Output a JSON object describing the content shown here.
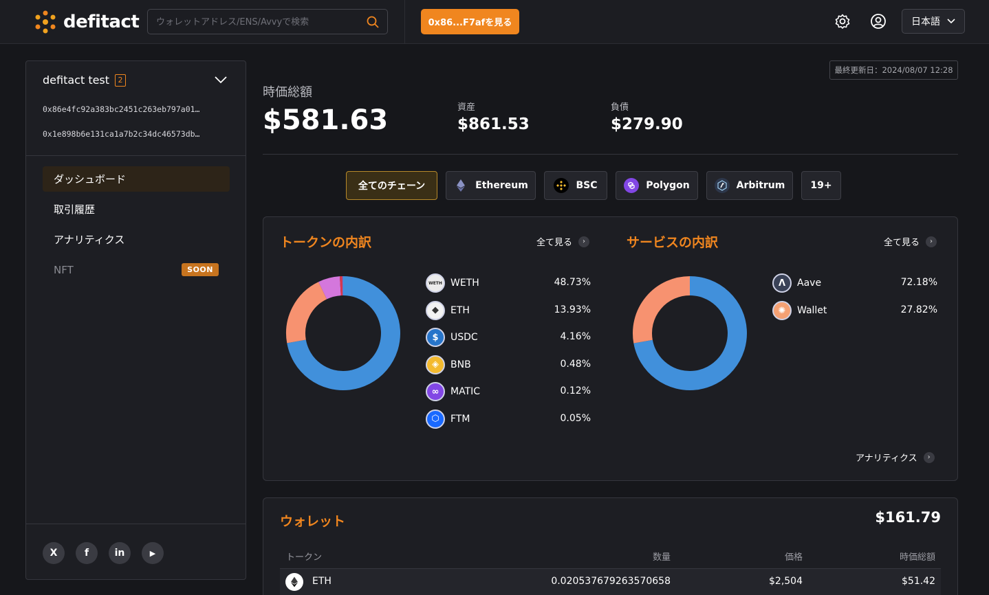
{
  "header": {
    "logo_text": "defitact",
    "search_placeholder": "ウォレットアドレス/ENS/Avvyで検索",
    "view_button": "0x86...F7afを見る",
    "language": "日本語"
  },
  "sidebar": {
    "account_name": "defitact test",
    "account_count": "2",
    "addresses": [
      "0x86e4fc92a383bc2451c263eb797a01…",
      "0x1e898b6e131ca1a7b2c34dc46573db…"
    ],
    "nav": [
      {
        "label": "ダッシュボード",
        "active": true
      },
      {
        "label": "取引履歴"
      },
      {
        "label": "アナリティクス"
      },
      {
        "label": "NFT",
        "badge": "SOON"
      }
    ],
    "social": [
      "X",
      "f",
      "in",
      "▶"
    ]
  },
  "summary": {
    "updated": "最終更新日：2024/08/07 12:28",
    "total_label": "時価総額",
    "total_value": "$581.63",
    "assets_label": "資産",
    "assets_value": "$861.53",
    "liabilities_label": "負債",
    "liabilities_value": "$279.90"
  },
  "chains": [
    {
      "label": "全てのチェーン",
      "icon": "none",
      "active": true
    },
    {
      "label": "Ethereum",
      "icon": "ethereum-icon"
    },
    {
      "label": "BSC",
      "icon": "bsc-icon"
    },
    {
      "label": "Polygon",
      "icon": "polygon-icon"
    },
    {
      "label": "Arbitrum",
      "icon": "arbitrum-icon"
    },
    {
      "label": "19+",
      "icon": "none"
    }
  ],
  "tokens": {
    "title": "トークンの内訳",
    "see_all": "全て見る",
    "items": [
      {
        "name": "WETH",
        "pct": "48.73%",
        "value": 48.73,
        "color": "#4190db"
      },
      {
        "name": "ETH",
        "pct": "13.93%",
        "value": 13.93,
        "color": "#f79270"
      },
      {
        "name": "USDC",
        "pct": "4.16%",
        "value": 4.16,
        "color": "#d477dc"
      },
      {
        "name": "BNB",
        "pct": "0.48%",
        "value": 0.48,
        "color": "#d8384d"
      },
      {
        "name": "MATIC",
        "pct": "0.12%",
        "value": 0.12,
        "color": "#9b6be0"
      },
      {
        "name": "FTM",
        "pct": "0.05%",
        "value": 0.05,
        "color": "#4fa3e0"
      }
    ]
  },
  "services": {
    "title": "サービスの内訳",
    "see_all": "全て見る",
    "items": [
      {
        "name": "Aave",
        "pct": "72.18%",
        "value": 72.18,
        "color": "#4190db"
      },
      {
        "name": "Wallet",
        "pct": "27.82%",
        "value": 27.82,
        "color": "#f79270"
      }
    ],
    "analytics_link": "アナリティクス"
  },
  "wallet": {
    "title": "ウォレット",
    "total": "$161.79",
    "columns": [
      "トークン",
      "数量",
      "価格",
      "時価総額"
    ],
    "rows": [
      {
        "token": "ETH",
        "qty": "0.020537679263570658",
        "price": "$2,504",
        "value": "$51.42"
      }
    ]
  }
}
